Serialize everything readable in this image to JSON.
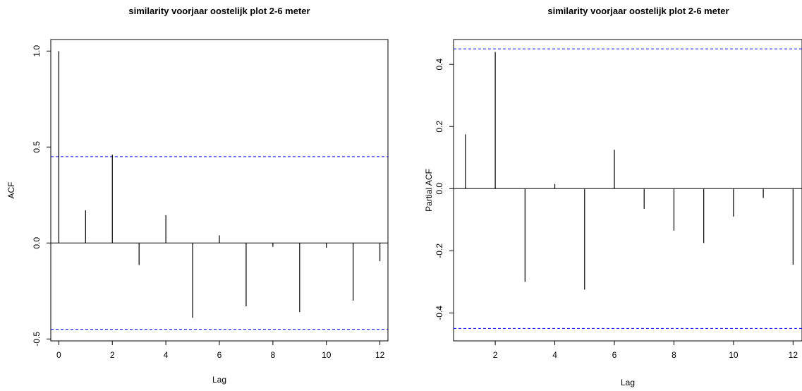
{
  "chart_data": [
    {
      "type": "bar",
      "title": "similarity voorjaar oostelijk plot 2-6 meter",
      "xlabel": "Lag",
      "ylabel": "ACF",
      "x": [
        0,
        1,
        2,
        3,
        4,
        5,
        6,
        7,
        8,
        9,
        10,
        11,
        12
      ],
      "values": [
        1.0,
        0.17,
        0.46,
        -0.115,
        0.145,
        -0.39,
        0.04,
        -0.33,
        -0.02,
        -0.36,
        -0.025,
        -0.3,
        -0.095
      ],
      "xlim": [
        -0.3,
        12.3
      ],
      "ylim": [
        -0.51,
        1.06
      ],
      "xticks": [
        "0",
        "2",
        "4",
        "6",
        "8",
        "10",
        "12"
      ],
      "yticks": [
        "-0.5",
        "0.0",
        "0.5",
        "1.0"
      ],
      "confidence_bounds": [
        0.45,
        -0.45
      ],
      "bound_color": "#0000ff",
      "bar_color": "#000000",
      "grid": false
    },
    {
      "type": "bar",
      "title": "similarity voorjaar oostelijk plot 2-6 meter",
      "xlabel": "Lag",
      "ylabel": "Partial ACF",
      "x": [
        1,
        2,
        3,
        4,
        5,
        6,
        7,
        8,
        9,
        10,
        11,
        12
      ],
      "values": [
        0.175,
        0.44,
        -0.3,
        0.015,
        -0.325,
        0.125,
        -0.065,
        -0.135,
        -0.175,
        -0.09,
        -0.03,
        -0.245
      ],
      "xlim": [
        0.6,
        12.3
      ],
      "ylim": [
        -0.49,
        0.48
      ],
      "xticks": [
        "2",
        "4",
        "6",
        "8",
        "10",
        "12"
      ],
      "yticks": [
        "-0.4",
        "-0.2",
        "0.0",
        "0.2",
        "0.4"
      ],
      "confidence_bounds": [
        0.45,
        -0.45
      ],
      "bound_color": "#0000ff",
      "bar_color": "#000000",
      "grid": false
    }
  ]
}
